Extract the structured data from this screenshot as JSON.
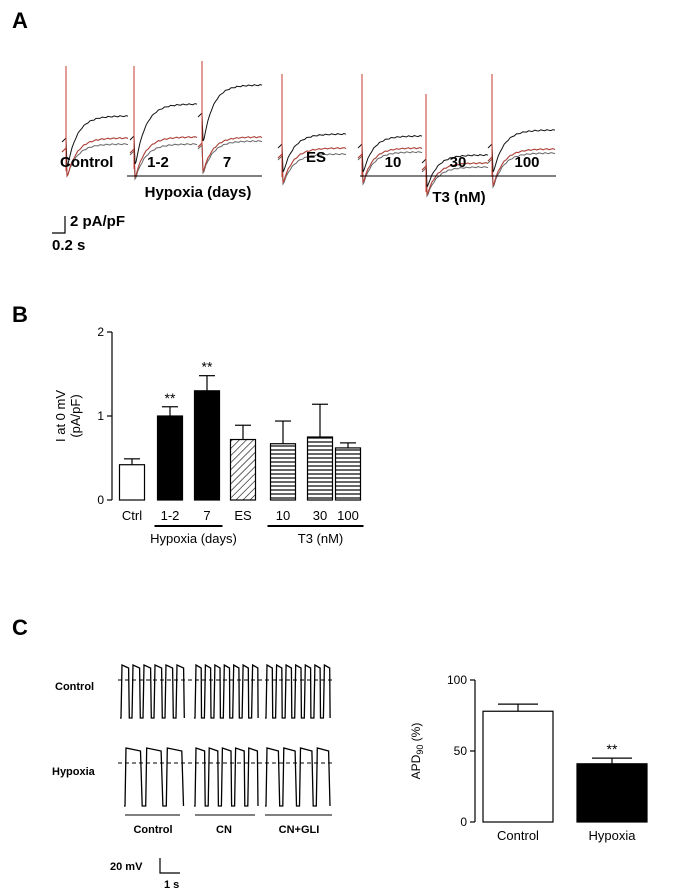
{
  "panels": {
    "a": "A",
    "b": "B",
    "c": "C"
  },
  "panel_a": {
    "control_label": "Control",
    "hypoxia_ticks": [
      "1-2",
      "7"
    ],
    "hypoxia_label": "Hypoxia (days)",
    "es_label": "ES",
    "t3_ticks": [
      "10",
      "30",
      "100"
    ],
    "t3_label": "T3 (nM)",
    "scale_current": "2 pA/pF",
    "scale_time": "0.2 s",
    "trace_colors": {
      "black": "#111111",
      "red": "#c0392b",
      "blue": "#3fa7c9",
      "gray": "#666666"
    }
  },
  "panel_c": {
    "control_row": "Control",
    "hypoxia_row": "Hypoxia",
    "conditions": [
      "Control",
      "CN",
      "CN+GLI"
    ],
    "scale_voltage": "20 mV",
    "scale_time": "1 s"
  },
  "chart_data": [
    {
      "type": "bar",
      "categories": [
        "Ctrl",
        "1-2",
        "7",
        "ES",
        "10",
        "30",
        "100"
      ],
      "values": [
        0.42,
        1.0,
        1.3,
        0.72,
        0.67,
        0.75,
        0.62
      ],
      "errors": [
        0.07,
        0.11,
        0.18,
        0.17,
        0.27,
        0.39,
        0.06
      ],
      "fills": [
        "white",
        "black",
        "black",
        "hatch-diagonal",
        "hatch-horizontal",
        "hatch-horizontal",
        "hatch-horizontal"
      ],
      "significance": [
        "",
        "**",
        "**",
        "",
        "",
        "",
        ""
      ],
      "ylabel": "I at 0 mV",
      "ylabel_unit": "(pA/pF)",
      "ylim": [
        0,
        2
      ],
      "yticks": [
        0,
        1,
        2
      ],
      "groups": [
        {
          "label": "Hypoxia (days)",
          "from": 1,
          "to": 2
        },
        {
          "label": "T3 (nM)",
          "from": 4,
          "to": 6
        }
      ]
    },
    {
      "type": "bar",
      "categories": [
        "Control",
        "Hypoxia"
      ],
      "values": [
        78,
        41
      ],
      "errors": [
        5,
        4
      ],
      "fills": [
        "white",
        "black"
      ],
      "significance": [
        "",
        "**"
      ],
      "ylabel": "APD",
      "ylabel_sub": "90",
      "ylabel_unit": "(%)",
      "ylim": [
        0,
        100
      ],
      "yticks": [
        0,
        50,
        100
      ]
    }
  ]
}
